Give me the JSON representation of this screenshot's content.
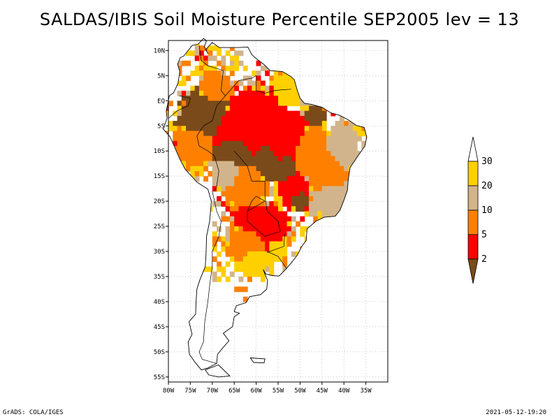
{
  "title": "SALDAS/IBIS Soil Moisture Percentile SEP2005 lev = 13",
  "footer": {
    "left": "GrADS: COLA/IGES",
    "right": "2021-05-12-19:20"
  },
  "map": {
    "lon_range": [
      -80,
      -30
    ],
    "lat_range": [
      -56,
      12
    ],
    "lon_ticks": [
      {
        "value": -80,
        "label": "80W"
      },
      {
        "value": -75,
        "label": "75W"
      },
      {
        "value": -70,
        "label": "70W"
      },
      {
        "value": -65,
        "label": "65W"
      },
      {
        "value": -60,
        "label": "60W"
      },
      {
        "value": -55,
        "label": "55W"
      },
      {
        "value": -50,
        "label": "50W"
      },
      {
        "value": -45,
        "label": "45W"
      },
      {
        "value": -40,
        "label": "40W"
      },
      {
        "value": -35,
        "label": "35W"
      }
    ],
    "lat_ticks": [
      {
        "value": 10,
        "label": "10N"
      },
      {
        "value": 5,
        "label": "5N"
      },
      {
        "value": 0,
        "label": "EQ"
      },
      {
        "value": -5,
        "label": "5S"
      },
      {
        "value": -10,
        "label": "10S"
      },
      {
        "value": -15,
        "label": "15S"
      },
      {
        "value": -20,
        "label": "20S"
      },
      {
        "value": -25,
        "label": "25S"
      },
      {
        "value": -30,
        "label": "30S"
      },
      {
        "value": -35,
        "label": "35S"
      },
      {
        "value": -40,
        "label": "40S"
      },
      {
        "value": -45,
        "label": "45S"
      },
      {
        "value": -50,
        "label": "50S"
      },
      {
        "value": -55,
        "label": "55S"
      }
    ],
    "grid": true
  },
  "legend": {
    "classes": [
      {
        "label": "<2",
        "color": "#7a4a1a"
      },
      {
        "label": "2-5",
        "color": "#ff0000"
      },
      {
        "label": "5-10",
        "color": "#ff8000"
      },
      {
        "label": "10-20",
        "color": "#d2b48c"
      },
      {
        "label": "20-30",
        "color": "#ffd000"
      },
      {
        "label": ">30",
        "color": "#ffffff"
      }
    ],
    "tick_labels": [
      "2",
      "5",
      "10",
      "20",
      "30"
    ]
  }
}
